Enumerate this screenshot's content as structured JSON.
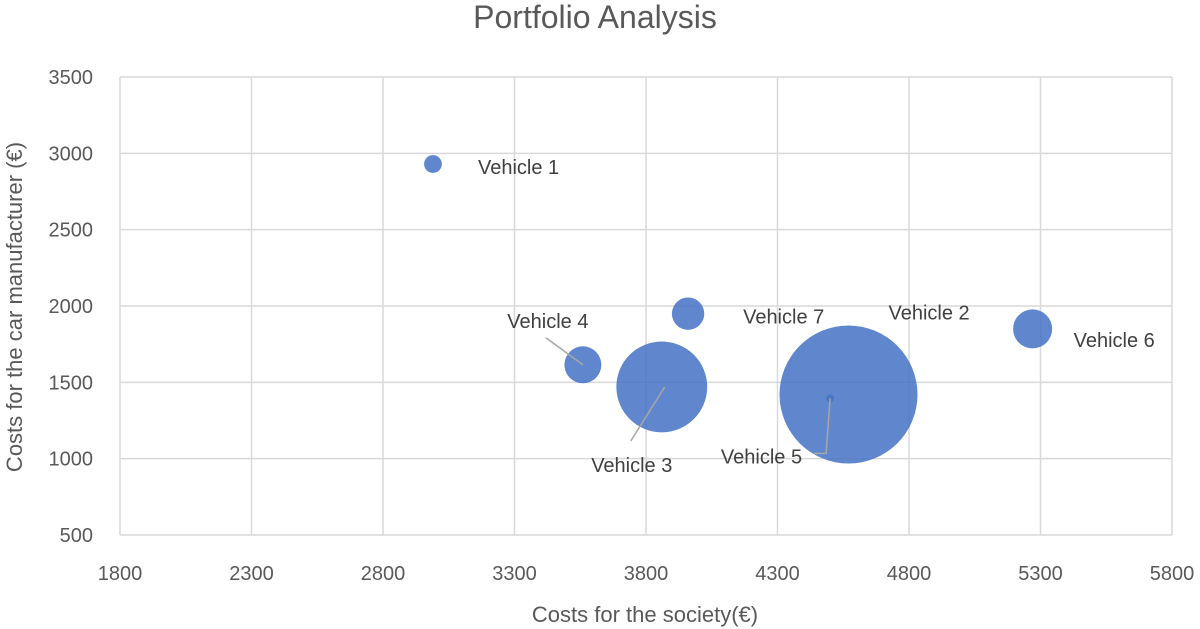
{
  "chart_data": {
    "type": "bubble",
    "title": "Portfolio Analysis",
    "xlabel": "Costs for the society(€)",
    "ylabel": "Costs for the car manufacturer (€)",
    "xlim": [
      1800,
      5800
    ],
    "ylim": [
      500,
      3500
    ],
    "xticks": [
      1800,
      2300,
      2800,
      3300,
      3800,
      4300,
      4800,
      5300,
      5800
    ],
    "yticks": [
      500,
      1000,
      1500,
      2000,
      2500,
      3000,
      3500
    ],
    "grid": true,
    "bubble_color": "#4472C4",
    "points": [
      {
        "label": "Vehicle 1",
        "x": 2990,
        "y": 2930,
        "size": 1
      },
      {
        "label": "Vehicle 2",
        "x": 4570,
        "y": 1420,
        "size": 60
      },
      {
        "label": "Vehicle 3",
        "x": 3860,
        "y": 1470,
        "size": 26
      },
      {
        "label": "Vehicle 4",
        "x": 3560,
        "y": 1615,
        "size": 4.3
      },
      {
        "label": "Vehicle 5",
        "x": 4500,
        "y": 1395,
        "size": 0.2
      },
      {
        "label": "Vehicle 6",
        "x": 5270,
        "y": 1850,
        "size": 4.8
      },
      {
        "label": "Vehicle 7",
        "x": 3960,
        "y": 1950,
        "size": 3.3
      }
    ]
  }
}
